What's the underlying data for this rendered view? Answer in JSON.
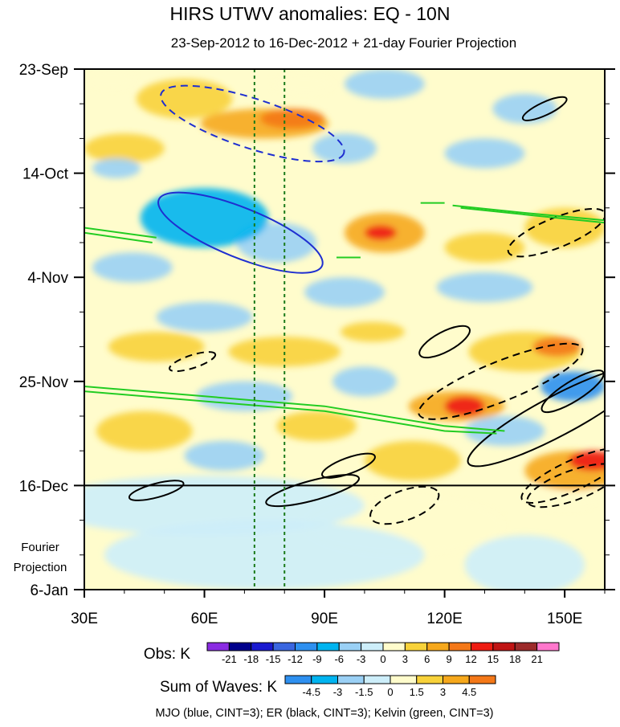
{
  "chart_data": {
    "type": "heatmap",
    "title": "HIRS UTWV anomalies: EQ - 10N",
    "subtitle": "23-Sep-2012 to 16-Dec-2012 + 21-day Fourier Projection",
    "x_axis": {
      "range": [
        30,
        160
      ],
      "ticks": [
        {
          "value": 30,
          "label": "30E"
        },
        {
          "value": 60,
          "label": "60E"
        },
        {
          "value": 90,
          "label": "90E"
        },
        {
          "value": 120,
          "label": "120E"
        },
        {
          "value": 150,
          "label": "150E"
        }
      ],
      "minor_tick_step": 10
    },
    "y_axis": {
      "range_days": [
        0,
        105
      ],
      "ticks": [
        {
          "day": 0,
          "label": "23-Sep"
        },
        {
          "day": 21,
          "label": "14-Oct"
        },
        {
          "day": 42,
          "label": "4-Nov"
        },
        {
          "day": 63,
          "label": "25-Nov"
        },
        {
          "day": 84,
          "label": "16-Dec"
        },
        {
          "day": 105,
          "label": "6-Jan"
        }
      ],
      "minor_tick_step_days": 7
    },
    "projection_label": [
      "Fourier",
      "Projection"
    ],
    "projection_start_day": 84,
    "reference_longitudes": [
      72.5,
      80
    ],
    "obs_colorbar": {
      "label": "Obs: K",
      "levels": [
        "-21",
        "-18",
        "-15",
        "-12",
        "-9",
        "-6",
        "-3",
        "0",
        "3",
        "6",
        "9",
        "12",
        "15",
        "18",
        "21"
      ],
      "colors": [
        "#8a2be2",
        "#00008b",
        "#1a1ad0",
        "#3a66e0",
        "#2e90f0",
        "#00b4f0",
        "#9ad0f5",
        "#cdeefa",
        "#fffccc",
        "#f8d23a",
        "#f6a81c",
        "#f47818",
        "#ee1c12",
        "#c01414",
        "#9c2a2a",
        "#ff77cc"
      ]
    },
    "waves_colorbar": {
      "label": "Sum of Waves: K",
      "levels": [
        "-4.5",
        "-3",
        "-1.5",
        "0",
        "1.5",
        "3",
        "4.5"
      ],
      "colors": [
        "#2e90f0",
        "#00b4f0",
        "#9ad0f5",
        "#cdeefa",
        "#fffccc",
        "#f8d23a",
        "#f6a81c",
        "#f47818"
      ]
    },
    "footer": "MJO (blue, CINT=3); ER (black, CINT=3); Kelvin (green, CINT=3)",
    "field_blobs": [
      {
        "lon": 55,
        "day": 6,
        "rx": 12,
        "rd": 4,
        "v": 5
      },
      {
        "lon": 75,
        "day": 11,
        "rx": 16,
        "rd": 3,
        "v": 7
      },
      {
        "lon": 82,
        "day": 10,
        "rx": 8,
        "rd": 2,
        "v": 10
      },
      {
        "lon": 40,
        "day": 16,
        "rx": 10,
        "rd": 3,
        "v": 4
      },
      {
        "lon": 37,
        "day": 2,
        "rx": 6,
        "rd": 2,
        "v": 3
      },
      {
        "lon": 85,
        "day": 3,
        "rx": 8,
        "rd": 2,
        "v": 3
      },
      {
        "lon": 105,
        "day": 3,
        "rx": 10,
        "rd": 3,
        "v": -3
      },
      {
        "lon": 140,
        "day": 8,
        "rx": 8,
        "rd": 3,
        "v": -5
      },
      {
        "lon": 130,
        "day": 17,
        "rx": 10,
        "rd": 3,
        "v": -3
      },
      {
        "lon": 95,
        "day": 16,
        "rx": 8,
        "rd": 3,
        "v": -3
      },
      {
        "lon": 38,
        "day": 20,
        "rx": 6,
        "rd": 2,
        "v": -5
      },
      {
        "lon": 60,
        "day": 30,
        "rx": 16,
        "rd": 6,
        "v": -6
      },
      {
        "lon": 78,
        "day": 35,
        "rx": 10,
        "rd": 4,
        "v": -5
      },
      {
        "lon": 42,
        "day": 40,
        "rx": 10,
        "rd": 3,
        "v": -4
      },
      {
        "lon": 105,
        "day": 33,
        "rx": 10,
        "rd": 4,
        "v": 7
      },
      {
        "lon": 104,
        "day": 33,
        "rx": 4,
        "rd": 1.5,
        "v": 13
      },
      {
        "lon": 150,
        "day": 32,
        "rx": 10,
        "rd": 4,
        "v": 6
      },
      {
        "lon": 130,
        "day": 36,
        "rx": 10,
        "rd": 3,
        "v": 4
      },
      {
        "lon": 95,
        "day": 45,
        "rx": 10,
        "rd": 3,
        "v": -4
      },
      {
        "lon": 130,
        "day": 44,
        "rx": 12,
        "rd": 3,
        "v": -3
      },
      {
        "lon": 60,
        "day": 50,
        "rx": 12,
        "rd": 3,
        "v": -3
      },
      {
        "lon": 80,
        "day": 57,
        "rx": 14,
        "rd": 3,
        "v": 5
      },
      {
        "lon": 48,
        "day": 56,
        "rx": 12,
        "rd": 3,
        "v": 5
      },
      {
        "lon": 140,
        "day": 57,
        "rx": 14,
        "rd": 4,
        "v": 6
      },
      {
        "lon": 148,
        "day": 56,
        "rx": 6,
        "rd": 2,
        "v": 11
      },
      {
        "lon": 102,
        "day": 53,
        "rx": 8,
        "rd": 2,
        "v": 5
      },
      {
        "lon": 152,
        "day": 64,
        "rx": 8,
        "rd": 3,
        "v": -9
      },
      {
        "lon": 123,
        "day": 68,
        "rx": 12,
        "rd": 3,
        "v": 8
      },
      {
        "lon": 125,
        "day": 68,
        "rx": 5,
        "rd": 2,
        "v": 13
      },
      {
        "lon": 45,
        "day": 73,
        "rx": 12,
        "rd": 4,
        "v": 6
      },
      {
        "lon": 88,
        "day": 72,
        "rx": 10,
        "rd": 3,
        "v": 4
      },
      {
        "lon": 70,
        "day": 66,
        "rx": 12,
        "rd": 3,
        "v": -3
      },
      {
        "lon": 112,
        "day": 79,
        "rx": 12,
        "rd": 4,
        "v": 5
      },
      {
        "lon": 152,
        "day": 81,
        "rx": 12,
        "rd": 4,
        "v": 9
      },
      {
        "lon": 157,
        "day": 79,
        "rx": 6,
        "rd": 2,
        "v": 14
      },
      {
        "lon": 135,
        "day": 73,
        "rx": 10,
        "rd": 3,
        "v": -3
      },
      {
        "lon": 65,
        "day": 78,
        "rx": 10,
        "rd": 3,
        "v": -3
      },
      {
        "lon": 100,
        "day": 63,
        "rx": 8,
        "rd": 3,
        "v": -3
      },
      {
        "lon": 60,
        "day": 88,
        "rx": 40,
        "rd": 6,
        "v": -2
      },
      {
        "lon": 75,
        "day": 98,
        "rx": 40,
        "rd": 7,
        "v": -2
      },
      {
        "lon": 110,
        "day": 92,
        "rx": 25,
        "rd": 6,
        "v": 1.3
      },
      {
        "lon": 150,
        "day": 86,
        "rx": 10,
        "rd": 3,
        "v": 3
      },
      {
        "lon": 140,
        "day": 100,
        "rx": 15,
        "rd": 6,
        "v": -1.4
      }
    ],
    "contours": [
      {
        "wave": "MJO",
        "lon": 72,
        "day": 11,
        "rx": 24,
        "rd": 5,
        "rot": 18,
        "dashed": true
      },
      {
        "wave": "MJO",
        "lon": 69,
        "day": 33,
        "rx": 22,
        "rd": 5,
        "rot": 22,
        "dashed": false
      },
      {
        "wave": "ER",
        "lon": 145,
        "day": 8,
        "rx": 6,
        "rd": 1.3,
        "rot": -25,
        "dashed": false
      },
      {
        "wave": "ER",
        "lon": 148,
        "day": 33,
        "rx": 13,
        "rd": 3,
        "rot": -22,
        "dashed": true
      },
      {
        "wave": "ER",
        "lon": 120,
        "day": 55,
        "rx": 7,
        "rd": 2,
        "rot": -28,
        "dashed": false
      },
      {
        "wave": "ER",
        "lon": 134,
        "day": 63,
        "rx": 22,
        "rd": 4,
        "rot": -22,
        "dashed": true
      },
      {
        "wave": "ER",
        "lon": 57,
        "day": 59,
        "rx": 6,
        "rd": 1.3,
        "rot": -18,
        "dashed": true
      },
      {
        "wave": "ER",
        "lon": 148,
        "day": 70,
        "rx": 25,
        "rd": 4,
        "rot": -28,
        "dashed": false
      },
      {
        "wave": "ER",
        "lon": 152,
        "day": 65,
        "rx": 9,
        "rd": 2,
        "rot": -32,
        "dashed": false
      },
      {
        "wave": "ER",
        "lon": 96,
        "day": 80,
        "rx": 7,
        "rd": 1.6,
        "rot": -20,
        "dashed": false
      },
      {
        "wave": "ER",
        "lon": 152,
        "day": 82,
        "rx": 14,
        "rd": 3,
        "rot": -25,
        "dashed": true
      },
      {
        "wave": "ER",
        "lon": 48,
        "day": 85,
        "rx": 7,
        "rd": 1.4,
        "rot": -15,
        "dashed": false
      },
      {
        "wave": "ER",
        "lon": 87,
        "day": 85,
        "rx": 12,
        "rd": 2,
        "rot": -15,
        "dashed": false
      },
      {
        "wave": "ER",
        "lon": 110,
        "day": 88,
        "rx": 9,
        "rd": 3,
        "rot": -20,
        "dashed": true
      },
      {
        "wave": "ER",
        "lon": 152,
        "day": 84,
        "rx": 12,
        "rd": 3,
        "rot": -20,
        "dashed": true
      }
    ],
    "kelvin_lines": [
      {
        "points": [
          [
            30,
            64
          ],
          [
            60,
            66
          ],
          [
            90,
            68
          ],
          [
            120,
            72
          ],
          [
            135,
            73
          ]
        ]
      },
      {
        "points": [
          [
            30,
            65
          ],
          [
            60,
            67
          ],
          [
            90,
            69
          ],
          [
            120,
            73
          ],
          [
            133,
            73.5
          ]
        ]
      },
      {
        "points": [
          [
            30,
            32
          ],
          [
            48,
            34
          ]
        ]
      },
      {
        "points": [
          [
            30,
            33
          ],
          [
            47,
            35
          ]
        ]
      },
      {
        "points": [
          [
            122,
            27.5
          ],
          [
            140,
            29
          ],
          [
            160,
            30.5
          ]
        ]
      },
      {
        "points": [
          [
            124,
            28
          ],
          [
            142,
            29.5
          ],
          [
            160,
            31
          ]
        ]
      },
      {
        "points": [
          [
            114,
            27
          ],
          [
            120,
            27
          ]
        ]
      },
      {
        "points": [
          [
            93,
            38
          ],
          [
            99,
            38
          ]
        ]
      }
    ]
  }
}
